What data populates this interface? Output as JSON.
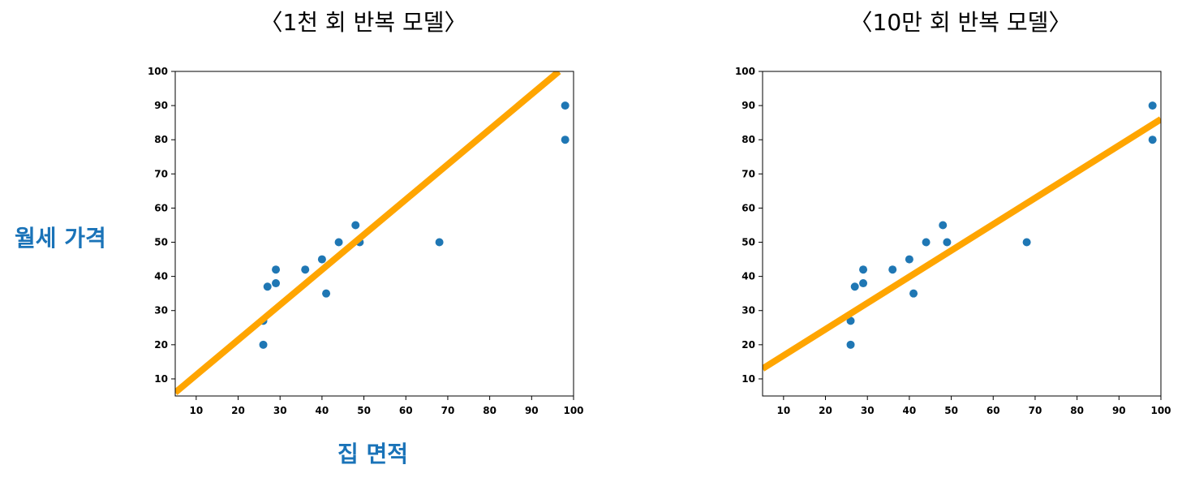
{
  "ylabel": "월세 가격",
  "xlabel": "집 면적",
  "chart_data": [
    {
      "type": "scatter",
      "title": "〈1천 회 반복 모델〉",
      "xlim": [
        5,
        100
      ],
      "ylim": [
        5,
        100
      ],
      "xticks": [
        10,
        20,
        30,
        40,
        50,
        60,
        70,
        80,
        90,
        100
      ],
      "yticks": [
        10,
        20,
        30,
        40,
        50,
        60,
        70,
        80,
        90,
        100
      ],
      "point_color": "#1f77b4",
      "line_color": "#ffa500",
      "points": [
        {
          "x": 26,
          "y": 27
        },
        {
          "x": 26,
          "y": 20
        },
        {
          "x": 27,
          "y": 37
        },
        {
          "x": 29,
          "y": 38
        },
        {
          "x": 29,
          "y": 42
        },
        {
          "x": 36,
          "y": 42
        },
        {
          "x": 40,
          "y": 45
        },
        {
          "x": 41,
          "y": 35
        },
        {
          "x": 44,
          "y": 50
        },
        {
          "x": 48,
          "y": 55
        },
        {
          "x": 49,
          "y": 50
        },
        {
          "x": 68,
          "y": 50
        },
        {
          "x": 98,
          "y": 90
        },
        {
          "x": 98,
          "y": 80
        }
      ],
      "fit_line": {
        "x": [
          5,
          96.5
        ],
        "y": [
          6,
          100
        ]
      }
    },
    {
      "type": "scatter",
      "title": "〈10만 회 반복 모델〉",
      "xlim": [
        5,
        100
      ],
      "ylim": [
        5,
        100
      ],
      "xticks": [
        10,
        20,
        30,
        40,
        50,
        60,
        70,
        80,
        90,
        100
      ],
      "yticks": [
        10,
        20,
        30,
        40,
        50,
        60,
        70,
        80,
        90,
        100
      ],
      "point_color": "#1f77b4",
      "line_color": "#ffa500",
      "points": [
        {
          "x": 26,
          "y": 27
        },
        {
          "x": 26,
          "y": 20
        },
        {
          "x": 27,
          "y": 37
        },
        {
          "x": 29,
          "y": 38
        },
        {
          "x": 29,
          "y": 42
        },
        {
          "x": 36,
          "y": 42
        },
        {
          "x": 40,
          "y": 45
        },
        {
          "x": 41,
          "y": 35
        },
        {
          "x": 44,
          "y": 50
        },
        {
          "x": 48,
          "y": 55
        },
        {
          "x": 49,
          "y": 50
        },
        {
          "x": 68,
          "y": 50
        },
        {
          "x": 98,
          "y": 90
        },
        {
          "x": 98,
          "y": 80
        }
      ],
      "fit_line": {
        "x": [
          5,
          100
        ],
        "y": [
          13,
          86
        ]
      }
    }
  ]
}
